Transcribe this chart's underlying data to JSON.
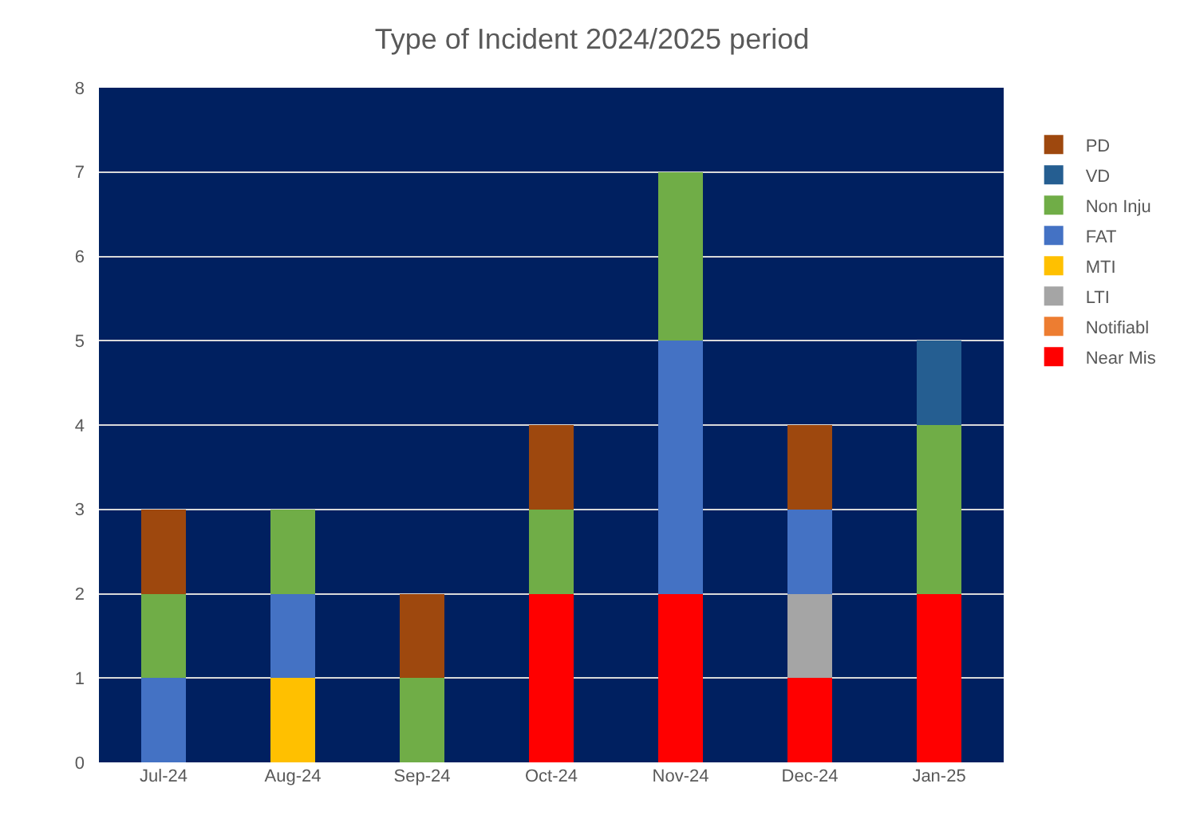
{
  "chart_data": {
    "type": "bar",
    "title": "Type of Incident 2024/2025 period",
    "stacked": true,
    "categories": [
      "Jul-24",
      "Aug-24",
      "Sep-24",
      "Oct-24",
      "Nov-24",
      "Dec-24",
      "Jan-25"
    ],
    "ylim": [
      0,
      8
    ],
    "yticks": [
      0,
      1,
      2,
      3,
      4,
      5,
      6,
      7,
      8
    ],
    "grid": "y",
    "legend": "right",
    "series": [
      {
        "name": "Near Mis",
        "color": "#ff0000",
        "values": [
          0,
          0,
          0,
          2,
          2,
          1,
          2
        ]
      },
      {
        "name": "Notifiabl",
        "color": "#ed7d31",
        "values": [
          0,
          0,
          0,
          0,
          0,
          0,
          0
        ]
      },
      {
        "name": "LTI",
        "color": "#a5a5a5",
        "values": [
          0,
          0,
          0,
          0,
          0,
          1,
          0
        ]
      },
      {
        "name": "MTI",
        "color": "#ffc000",
        "values": [
          0,
          1,
          0,
          0,
          0,
          0,
          0
        ]
      },
      {
        "name": "FAT",
        "color": "#4472c4",
        "values": [
          1,
          1,
          0,
          0,
          3,
          1,
          0
        ]
      },
      {
        "name": "Non Inju",
        "color": "#70ad47",
        "values": [
          1,
          1,
          1,
          1,
          2,
          0,
          2
        ]
      },
      {
        "name": "VD",
        "color": "#255e91",
        "values": [
          0,
          0,
          0,
          0,
          0,
          0,
          1
        ]
      },
      {
        "name": "PD",
        "color": "#9e480e",
        "values": [
          1,
          0,
          1,
          1,
          0,
          1,
          0
        ]
      }
    ]
  }
}
